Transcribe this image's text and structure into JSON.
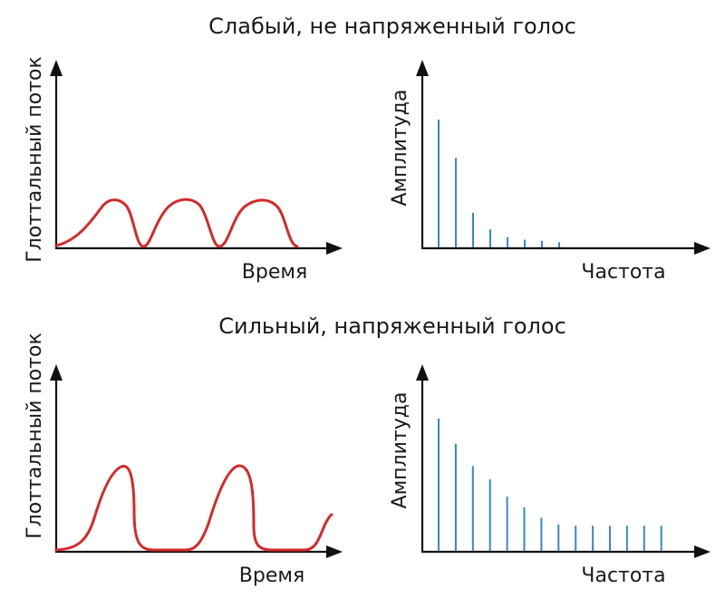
{
  "colors": {
    "waveform": "#d42a2a",
    "harmonic": "#3a86c8",
    "axis": "#111111"
  },
  "panels": [
    {
      "title": "Слабый, не напряженный голос",
      "waveform": {
        "ylabel": "Глоттальный поток",
        "xlabel": "Время",
        "description_level": "weak"
      },
      "spectrum": {
        "ylabel": "Амплитуда",
        "xlabel": "Частота",
        "harmonic_amplitudes": [
          1.0,
          0.7,
          0.27,
          0.14,
          0.08,
          0.06,
          0.05,
          0.04
        ]
      }
    },
    {
      "title": "Сильный, напряженный голос",
      "waveform": {
        "ylabel": "Глоттальный поток",
        "xlabel": "Время",
        "description_level": "strong"
      },
      "spectrum": {
        "ylabel": "Амплитуда",
        "xlabel": "Частота",
        "harmonic_amplitudes": [
          1.0,
          0.81,
          0.64,
          0.54,
          0.41,
          0.33,
          0.25,
          0.2,
          0.19,
          0.19,
          0.19,
          0.19,
          0.19,
          0.19
        ]
      }
    }
  ]
}
